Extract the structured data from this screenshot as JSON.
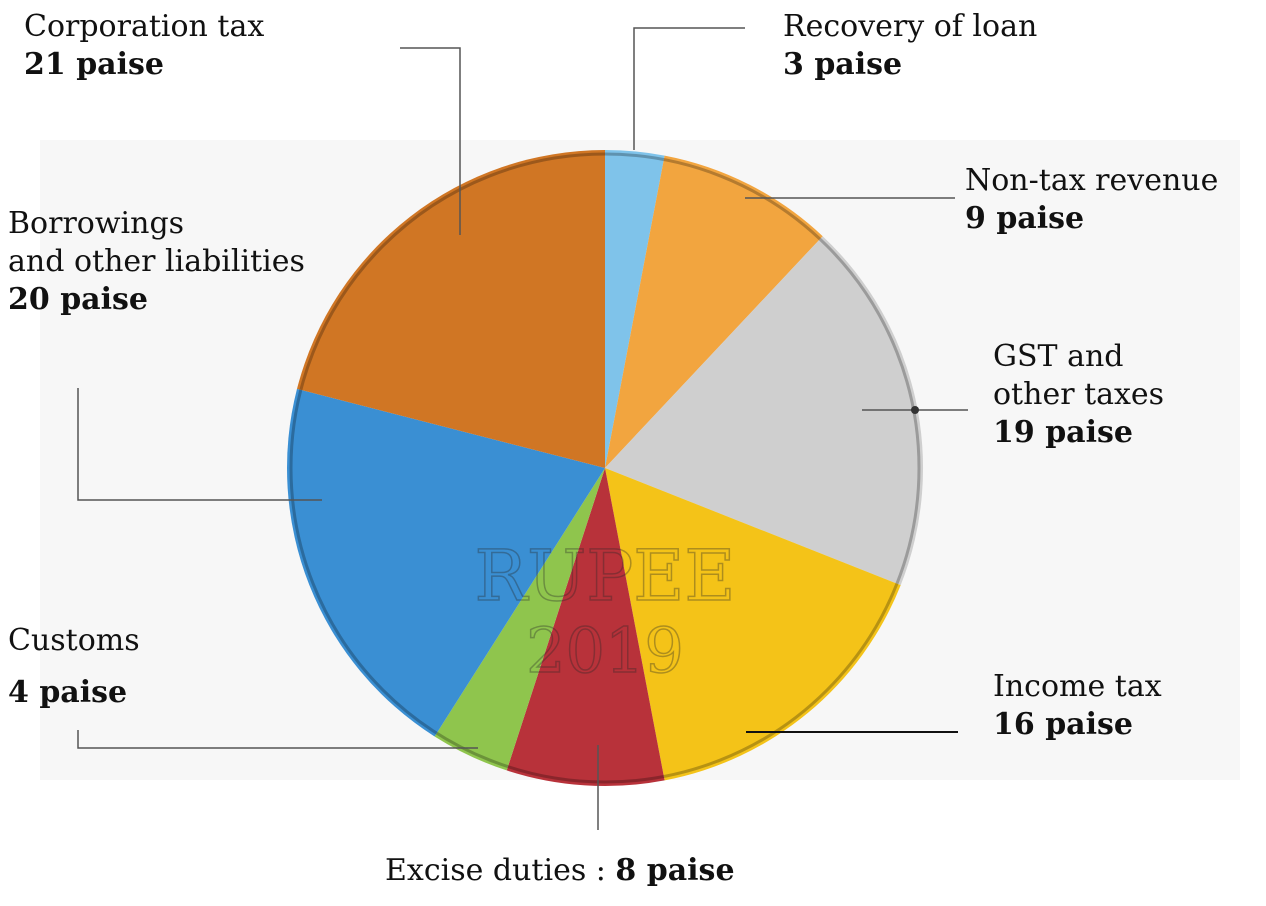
{
  "chart_data": {
    "type": "pie",
    "unit": "paise",
    "slices": [
      {
        "name": "Recovery of loan",
        "value": 3,
        "value_label": "3 paise",
        "color": "#7fc3ea"
      },
      {
        "name": "Non-tax revenue",
        "value": 9,
        "value_label": "9 paise",
        "color": "#f2a53f"
      },
      {
        "name": "GST and other taxes",
        "value": 19,
        "value_label": "19 paise",
        "color": "#cfcfcf"
      },
      {
        "name": "Income tax",
        "value": 16,
        "value_label": "16 paise",
        "color": "#f4c318"
      },
      {
        "name": "Excise duties",
        "value": 8,
        "value_label": "8 paise",
        "color": "#b8323a"
      },
      {
        "name": "Customs",
        "value": 4,
        "value_label": "4 paise",
        "color": "#8fc54d"
      },
      {
        "name": "Borrowings and other liabilities",
        "value": 20,
        "value_label": "20 paise",
        "color": "#3a8fd3"
      },
      {
        "name": "Corporation tax",
        "value": 21,
        "value_label": "21 paise",
        "color": "#d07624"
      }
    ],
    "coin_text": [
      "RUPEE",
      "2019"
    ]
  },
  "labels": {
    "recovery": {
      "name": "Recovery of loan",
      "value": "3 paise"
    },
    "nontax": {
      "name": "Non-tax revenue",
      "value": "9 paise"
    },
    "gst": {
      "name_line1": "GST and",
      "name_line2": "other taxes",
      "value": "19 paise"
    },
    "income": {
      "name": "Income tax",
      "value": "16 paise"
    },
    "excise": {
      "name": "Excise duties",
      "separator": " : ",
      "value": "8 paise"
    },
    "customs": {
      "name": "Customs",
      "value": "4 paise"
    },
    "borrowings": {
      "name_line1": "Borrowings",
      "name_line2": "and other liabilities",
      "value": "20 paise"
    },
    "corporation": {
      "name": "Corporation tax",
      "value": "21 paise"
    }
  }
}
